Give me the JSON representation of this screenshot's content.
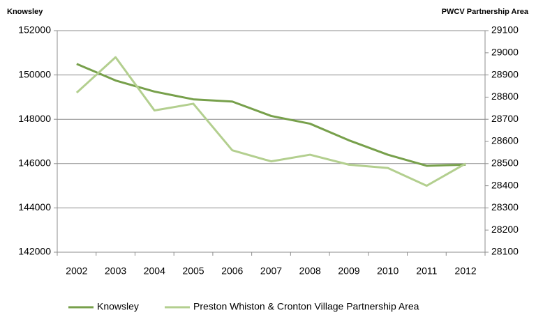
{
  "chart_data": {
    "type": "line",
    "y_label": "Knowsley",
    "y2_label": "PWCV Partnership Area",
    "categories": [
      "2002",
      "2003",
      "2004",
      "2005",
      "2006",
      "2007",
      "2008",
      "2009",
      "2010",
      "2011",
      "2012"
    ],
    "series": [
      {
        "name": "Knowsley",
        "color": "#77a04b",
        "values": [
          150500,
          149750,
          149250,
          148900,
          148800,
          148150,
          147800,
          147050,
          146400,
          145900,
          145950
        ]
      },
      {
        "name": "Preston Whiston & Cronton Village Partnership Area",
        "color": "#b3cf8f",
        "axis": "y2",
        "values": [
          28820,
          28980,
          28740,
          28770,
          28560,
          28510,
          28540,
          28495,
          28480,
          28400,
          28500
        ]
      }
    ],
    "ylim": [
      142000,
      152000
    ],
    "yticks": [
      142000,
      144000,
      146000,
      148000,
      150000,
      152000
    ],
    "y2lim": [
      28100,
      29100
    ],
    "y2ticks": [
      28100,
      28200,
      28300,
      28400,
      28500,
      28600,
      28700,
      28800,
      28900,
      29000,
      29100
    ],
    "grid": true
  }
}
